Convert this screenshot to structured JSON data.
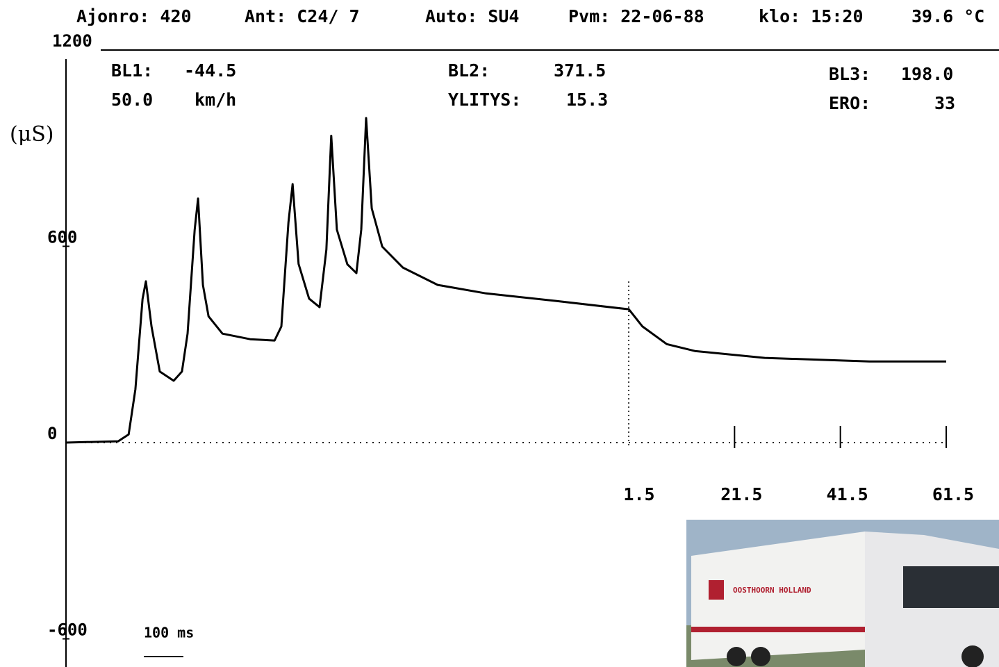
{
  "chart_data": {
    "type": "line",
    "header": [
      "Ajonro: 420",
      "Ant: C24/ 7",
      "Auto: SU4",
      "Pvm: 22-06-88",
      "klo: 15:20",
      "39.6 °C"
    ],
    "info": [
      [
        "BL1:",
        "-44.5"
      ],
      [
        "50.0",
        "km/h"
      ],
      [
        "BL2:",
        "371.5"
      ],
      [
        "YLITYS:",
        "15.3"
      ],
      [
        "BL3:",
        "198.0"
      ],
      [
        "ERO:",
        "33"
      ]
    ],
    "ylabel": "(μS)",
    "scale_bar_label": "100 ms",
    "color": "#000000",
    "x": [
      0,
      0.139,
      0.167,
      0.185,
      0.204,
      0.213,
      0.228,
      0.25,
      0.287,
      0.309,
      0.324,
      0.343,
      0.352,
      0.365,
      0.38,
      0.417,
      0.491,
      0.556,
      0.574,
      0.593,
      0.604,
      0.62,
      0.648,
      0.676,
      0.694,
      0.707,
      0.722,
      0.75,
      0.774,
      0.787,
      0.8,
      0.815,
      0.843,
      0.898,
      0.991,
      1.12,
      1.306,
      1.496,
      1.5,
      4.1,
      8.7,
      14.0,
      27.2,
      47.0,
      61.5
    ],
    "values": [
      0,
      4,
      25,
      163,
      439,
      493,
      355,
      217,
      189,
      217,
      333,
      650,
      746,
      482,
      386,
      333,
      316,
      312,
      355,
      673,
      790,
      546,
      440,
      414,
      590,
      938,
      651,
      545,
      518,
      651,
      992,
      716,
      599,
      535,
      482,
      456,
      433,
      408,
      408,
      355,
      301,
      280,
      259,
      248,
      248
    ],
    "xlim": [
      0,
      61.5
    ],
    "xticks": [
      1.5,
      21.5,
      41.5,
      61.5
    ],
    "ylim": [
      -600,
      1200
    ],
    "yticks": [
      -600,
      0,
      600,
      1200
    ]
  }
}
